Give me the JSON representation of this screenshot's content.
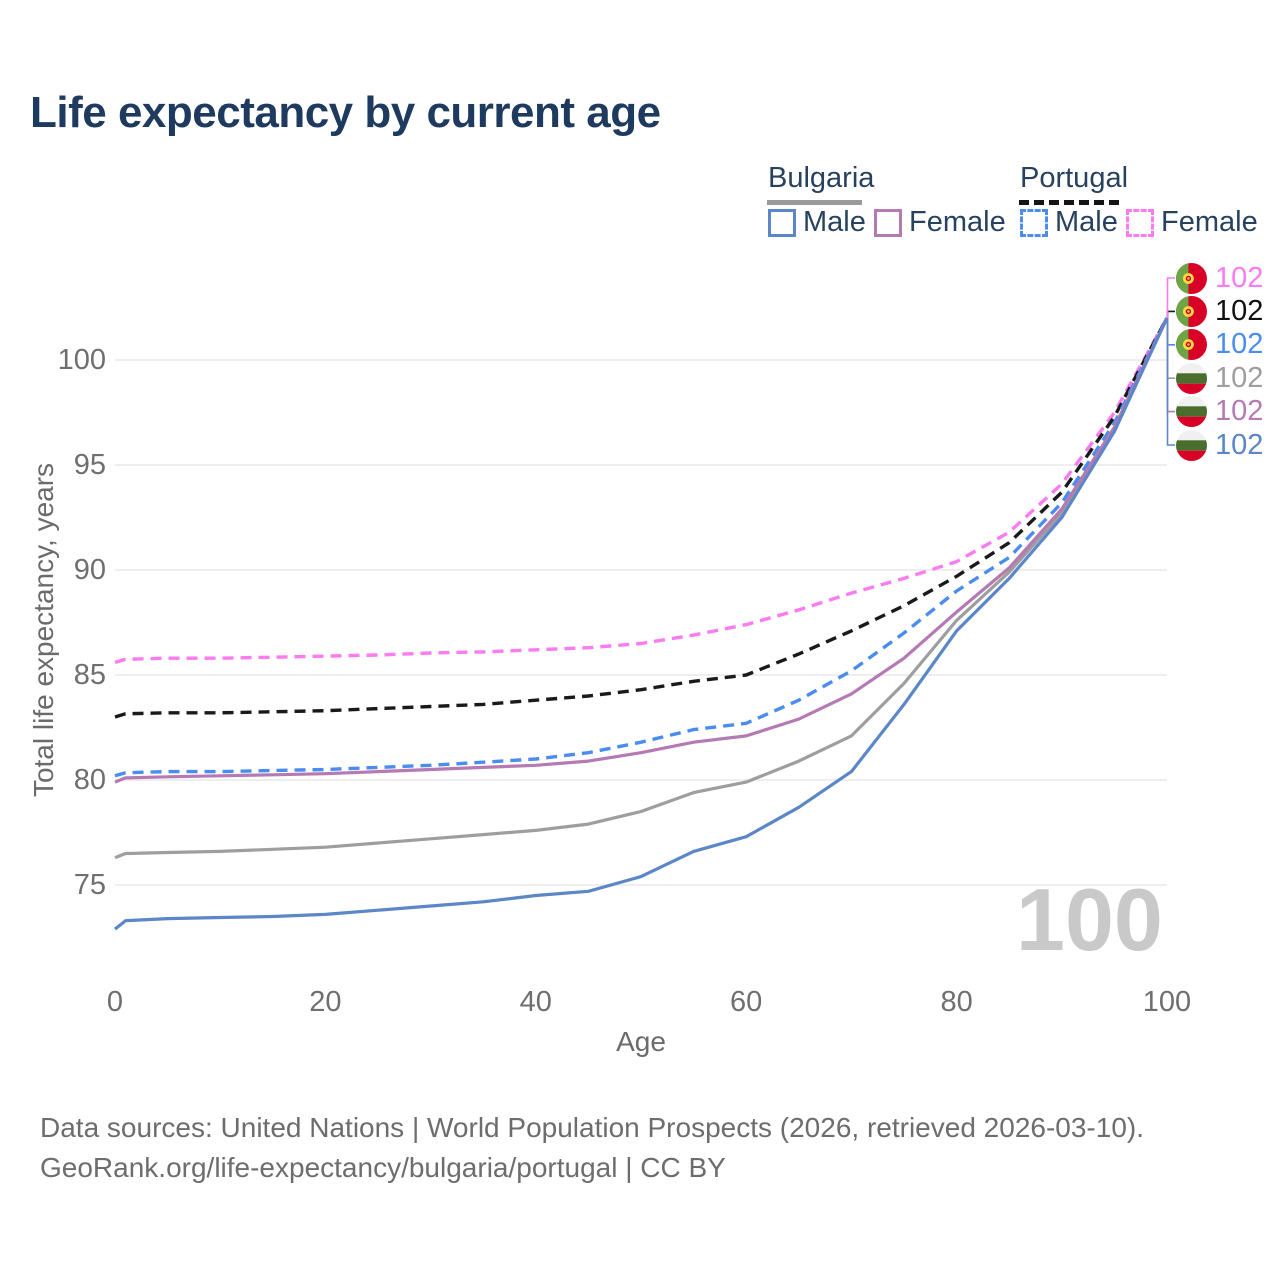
{
  "title": "Life expectancy by current age",
  "watermark": "100",
  "legend": {
    "groups": [
      {
        "label": "Bulgaria",
        "line_style": "solid",
        "underline_color": "#9a9a9a",
        "items": [
          {
            "label": "Male",
            "color": "#5b86c8",
            "dashed": false
          },
          {
            "label": "Female",
            "color": "#b57ab4",
            "dashed": false
          }
        ]
      },
      {
        "label": "Portugal",
        "line_style": "dashed",
        "underline_color": "#141414",
        "items": [
          {
            "label": "Male",
            "color": "#4a8cf0",
            "dashed": true
          },
          {
            "label": "Female",
            "color": "#fb7bf2",
            "dashed": true
          }
        ]
      }
    ]
  },
  "chart_data": {
    "type": "line",
    "title": "Life expectancy by current age",
    "xlabel": "Age",
    "ylabel": "Total life expectancy, years",
    "x_ticks": [
      0,
      20,
      40,
      60,
      80,
      100
    ],
    "y_ticks": [
      75,
      80,
      85,
      90,
      95,
      100
    ],
    "xlim": [
      0,
      100
    ],
    "ylim": [
      72,
      103
    ],
    "grid": true,
    "legend_position": "top-right",
    "x": [
      0,
      1,
      5,
      10,
      15,
      20,
      25,
      30,
      35,
      40,
      45,
      50,
      55,
      60,
      65,
      70,
      75,
      80,
      85,
      90,
      95,
      100
    ],
    "series": [
      {
        "name": "Portugal Female",
        "country": "portugal",
        "sex": "female",
        "color": "#fb7bf2",
        "dashed": true,
        "end_label": "102",
        "values": [
          85.6,
          85.75,
          85.8,
          85.8,
          85.85,
          85.9,
          85.95,
          86.05,
          86.1,
          86.2,
          86.3,
          86.5,
          86.9,
          87.4,
          88.1,
          88.9,
          89.6,
          90.4,
          91.8,
          94.1,
          97.5,
          102
        ]
      },
      {
        "name": "Portugal Total",
        "country": "portugal",
        "sex": "total",
        "color": "#1a1a1a",
        "dashed": true,
        "end_label": "102",
        "values": [
          83.0,
          83.15,
          83.2,
          83.2,
          83.25,
          83.3,
          83.4,
          83.5,
          83.6,
          83.8,
          84.0,
          84.3,
          84.7,
          85.0,
          86.0,
          87.1,
          88.3,
          89.7,
          91.3,
          93.7,
          97.3,
          102
        ]
      },
      {
        "name": "Portugal Male",
        "country": "portugal",
        "sex": "male",
        "color": "#4a8cf0",
        "dashed": true,
        "end_label": "102",
        "values": [
          80.2,
          80.35,
          80.4,
          80.4,
          80.45,
          80.5,
          80.6,
          80.7,
          80.85,
          81.0,
          81.3,
          81.8,
          82.4,
          82.7,
          83.8,
          85.2,
          87.0,
          89.0,
          90.6,
          93.2,
          97.0,
          102
        ]
      },
      {
        "name": "Bulgaria Total",
        "country": "bulgaria",
        "sex": "total",
        "color": "#9e9e9e",
        "dashed": false,
        "end_label": "102",
        "values": [
          76.3,
          76.5,
          76.55,
          76.6,
          76.7,
          76.8,
          77.0,
          77.2,
          77.4,
          77.6,
          77.9,
          78.5,
          79.4,
          79.9,
          80.9,
          82.1,
          84.6,
          87.6,
          89.9,
          92.7,
          96.7,
          102
        ]
      },
      {
        "name": "Bulgaria Female",
        "country": "bulgaria",
        "sex": "female",
        "color": "#b57ab4",
        "dashed": false,
        "end_label": "102",
        "values": [
          79.9,
          80.1,
          80.15,
          80.2,
          80.25,
          80.3,
          80.4,
          80.5,
          80.6,
          80.7,
          80.9,
          81.3,
          81.8,
          82.1,
          82.9,
          84.1,
          85.8,
          88.0,
          90.1,
          92.9,
          96.8,
          102
        ]
      },
      {
        "name": "Bulgaria Male",
        "country": "bulgaria",
        "sex": "male",
        "color": "#5b86c8",
        "dashed": false,
        "end_label": "102",
        "values": [
          72.9,
          73.3,
          73.4,
          73.45,
          73.5,
          73.6,
          73.8,
          74.0,
          74.2,
          74.5,
          74.7,
          75.4,
          76.6,
          77.3,
          78.7,
          80.4,
          83.6,
          87.1,
          89.6,
          92.5,
          96.6,
          102
        ]
      }
    ],
    "flag_colors": {
      "portugal": {
        "green": "#6DA544",
        "red": "#D80027",
        "emblem_yellow": "#FFDA44",
        "emblem_red": "#D80027"
      },
      "bulgaria": {
        "white": "#F0F0F0",
        "green": "#496E2D",
        "red": "#D80027"
      }
    },
    "grid_color": "#e9e9e9"
  },
  "footer": {
    "line1": "Data sources: United Nations | World Population Prospects (2026, retrieved 2026-03-10).",
    "line2": "GeoRank.org/life-expectancy/bulgaria/portugal | CC BY"
  }
}
